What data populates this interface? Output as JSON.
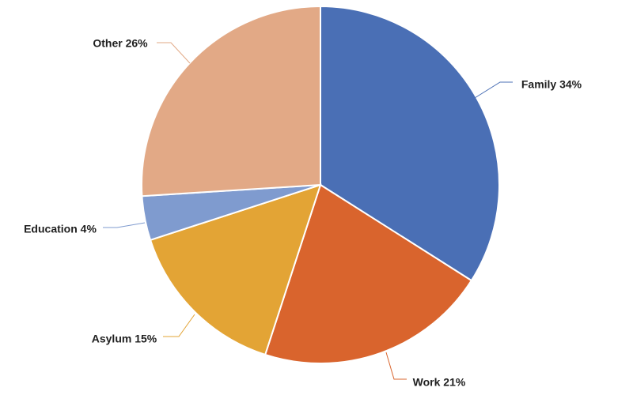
{
  "chart_data": {
    "type": "pie",
    "title": "",
    "start_angle_deg": 0,
    "direction": "clockwise",
    "slices": [
      {
        "label": "Family",
        "value": 34,
        "display": "Family 34%",
        "color": "#4a6fb5"
      },
      {
        "label": "Work",
        "value": 21,
        "display": "Work 21%",
        "color": "#d9642d"
      },
      {
        "label": "Asylum",
        "value": 15,
        "display": "Asylum 15%",
        "color": "#e3a435"
      },
      {
        "label": "Education",
        "value": 4,
        "display": "Education 4%",
        "color": "#7f9bcf"
      },
      {
        "label": "Other",
        "value": 26,
        "display": "Other 26%",
        "color": "#e2a986"
      }
    ],
    "labels_outside": true,
    "leader_lines": true
  }
}
